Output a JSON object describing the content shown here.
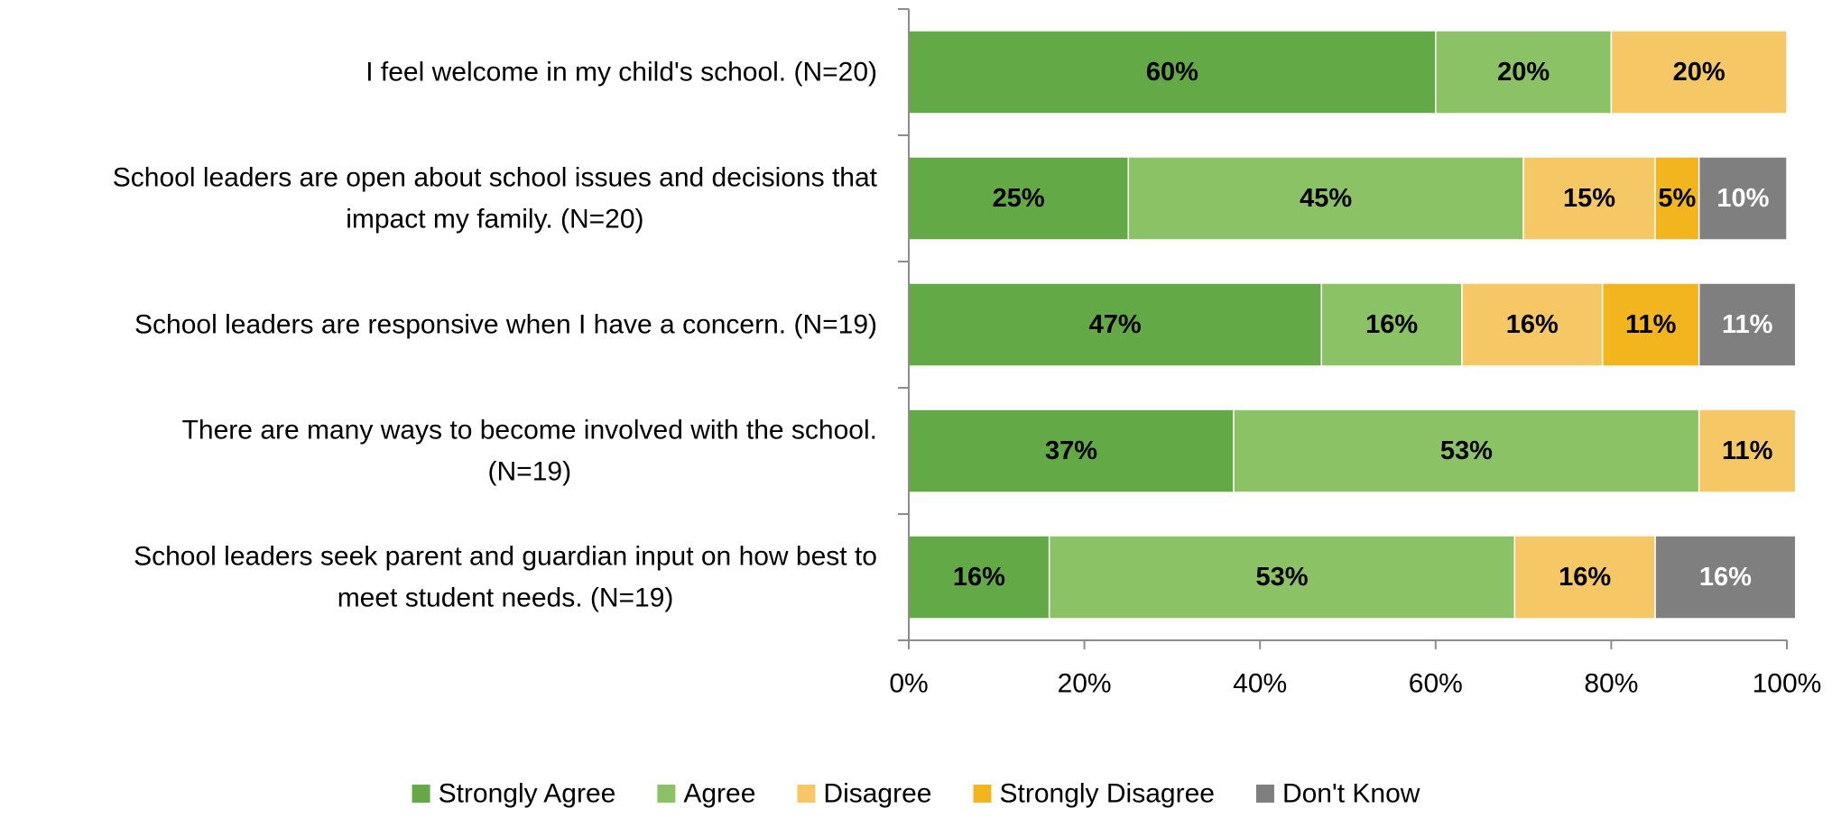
{
  "chart_data": {
    "type": "bar",
    "orientation": "horizontal",
    "stacked": true,
    "title": "",
    "xlabel": "",
    "ylabel": "",
    "xlim": [
      0,
      100
    ],
    "x_ticks": [
      "0%",
      "20%",
      "40%",
      "60%",
      "80%",
      "100%"
    ],
    "grid": false,
    "legend_position": "bottom",
    "categories": [
      [
        "I feel welcome in my child's school. (N=20)"
      ],
      [
        "School leaders are open about school issues and decisions that",
        "impact my family. (N=20)"
      ],
      [
        "School leaders are responsive when I have a concern. (N=19)"
      ],
      [
        "There are many ways to become involved with the school.",
        "(N=19)"
      ],
      [
        "School leaders seek parent and guardian input on how best to",
        "meet student needs. (N=19)"
      ]
    ],
    "series": [
      {
        "name": "Strongly Agree",
        "color": "#63AA46",
        "label_color": "#000000",
        "values": [
          60,
          25,
          47,
          37,
          16
        ]
      },
      {
        "name": "Agree",
        "color": "#8CC266",
        "label_color": "#000000",
        "values": [
          20,
          45,
          16,
          53,
          53
        ]
      },
      {
        "name": "Disagree",
        "color": "#F6C865",
        "label_color": "#000000",
        "values": [
          20,
          15,
          16,
          11,
          16
        ]
      },
      {
        "name": "Strongly Disagree",
        "color": "#F2B51E",
        "label_color": "#000000",
        "values": [
          0,
          5,
          11,
          0,
          0
        ]
      },
      {
        "name": "Don't Know",
        "color": "#7F7F7F",
        "label_color": "#ffffff",
        "values": [
          0,
          10,
          11,
          0,
          16
        ]
      }
    ]
  }
}
